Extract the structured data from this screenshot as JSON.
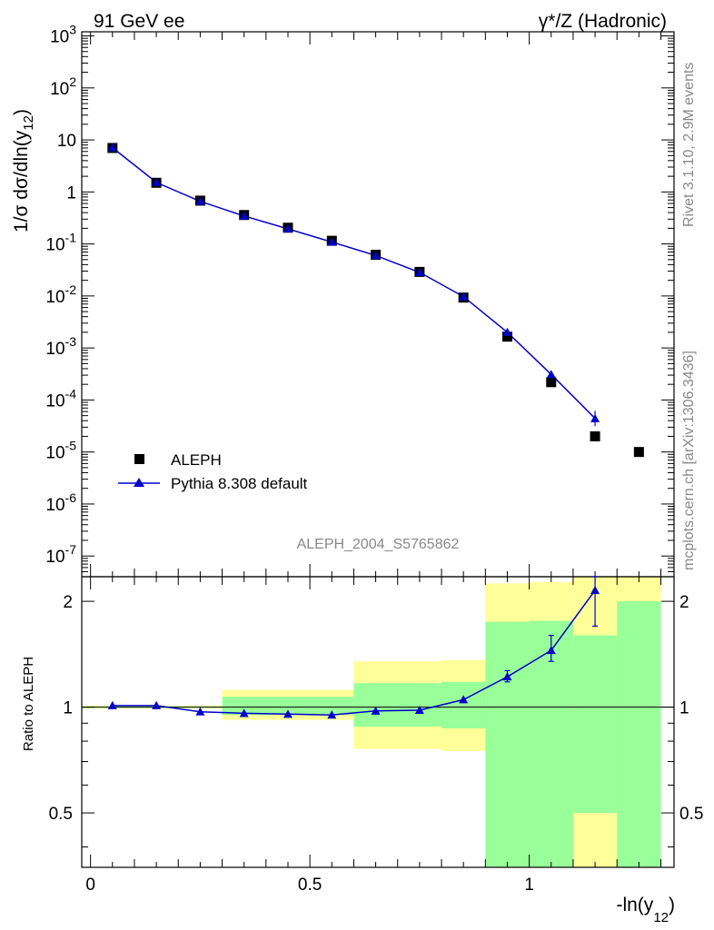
{
  "header": {
    "left_title": "91 GeV ee",
    "right_title": "γ*/Z (Hadronic)"
  },
  "side_labels": {
    "rivet": "Rivet 3.1.10,  2.9M events",
    "mcplots": "mcplots.cern.ch [arXiv:1306.3436]"
  },
  "watermark": "ALEPH_2004_S5765862",
  "legend": {
    "data_label": "ALEPH",
    "mc_label": "Pythia 8.308 default"
  },
  "colors": {
    "data": "#000000",
    "mc": "#0000cc",
    "band_outer": "#ffff99",
    "band_inner": "#99ff99",
    "side_text": "#888888"
  },
  "chart_data": [
    {
      "type": "scatter",
      "panel": "main",
      "ylabel": "1/σ  dσ/dln(y12)",
      "xlabel": "-ln(y12)",
      "yscale": "log",
      "xlim": [
        -0.02,
        1.33
      ],
      "ylim": [
        4e-08,
        1200
      ],
      "y_tick_labels": [
        "10^-7",
        "10^-6",
        "10^-5",
        "10^-4",
        "10^-3",
        "10^-2",
        "10^-1",
        "1",
        "10",
        "10^2",
        "10^3"
      ],
      "series": [
        {
          "name": "ALEPH",
          "marker": "square",
          "x": [
            0.05,
            0.15,
            0.25,
            0.35,
            0.45,
            0.55,
            0.65,
            0.75,
            0.85,
            0.95,
            1.05,
            1.15,
            1.25
          ],
          "y": [
            7.0,
            1.5,
            0.68,
            0.36,
            0.205,
            0.115,
            0.062,
            0.029,
            0.0093,
            0.00165,
            0.00022,
            2e-05,
            1e-05
          ]
        },
        {
          "name": "Pythia 8.308 default",
          "marker": "triangle",
          "x": [
            0.05,
            0.15,
            0.25,
            0.35,
            0.45,
            0.55,
            0.65,
            0.75,
            0.85,
            0.95,
            1.05,
            1.15
          ],
          "y": [
            7.1,
            1.52,
            0.66,
            0.345,
            0.195,
            0.109,
            0.06,
            0.0284,
            0.0097,
            0.002,
            0.00031,
            4.4e-05
          ]
        }
      ]
    },
    {
      "type": "line",
      "panel": "ratio",
      "ylabel": "Ratio to ALEPH",
      "xlabel": "-ln(y12)",
      "yscale": "log",
      "xlim": [
        -0.02,
        1.33
      ],
      "ylim": [
        0.35,
        2.35
      ],
      "x_tick_labels": [
        "0",
        "0.5",
        "1"
      ],
      "y_tick_labels": [
        "0.5",
        "1",
        "2"
      ],
      "bands": [
        {
          "x0": -0.02,
          "x1": 0.3,
          "outer": [
            0.99,
            1.01
          ],
          "inner": [
            0.995,
            1.005
          ]
        },
        {
          "x0": 0.3,
          "x1": 0.6,
          "outer": [
            0.92,
            1.12
          ],
          "inner": [
            0.95,
            1.07
          ]
        },
        {
          "x0": 0.6,
          "x1": 0.8,
          "outer": [
            0.76,
            1.35
          ],
          "inner": [
            0.88,
            1.17
          ]
        },
        {
          "x0": 0.8,
          "x1": 0.9,
          "outer": [
            0.75,
            1.36
          ],
          "inner": [
            0.87,
            1.18
          ]
        },
        {
          "x0": 0.9,
          "x1": 1.0,
          "outer": [
            0.35,
            2.25
          ],
          "inner": [
            0.35,
            1.75
          ]
        },
        {
          "x0": 1.0,
          "x1": 1.1,
          "outer": [
            0.35,
            2.27
          ],
          "inner": [
            0.35,
            1.76
          ]
        },
        {
          "x0": 1.1,
          "x1": 1.2,
          "outer": [
            0.35,
            2.35
          ],
          "inner": [
            0.5,
            1.6
          ],
          "outer_gaps": [
            [
              0.5,
              1.6
            ]
          ]
        },
        {
          "x0": 1.2,
          "x1": 1.3,
          "outer": [
            0.35,
            2.35
          ],
          "inner": [
            0.35,
            2.0
          ]
        }
      ],
      "series": [
        {
          "name": "Pythia 8.308 default",
          "x": [
            0.05,
            0.15,
            0.25,
            0.35,
            0.45,
            0.55,
            0.65,
            0.75,
            0.85,
            0.95,
            1.05,
            1.15
          ],
          "y": [
            1.01,
            1.01,
            0.97,
            0.96,
            0.955,
            0.95,
            0.975,
            0.98,
            1.05,
            1.22,
            1.45,
            2.15
          ],
          "err_low": [
            0,
            0,
            0,
            0,
            0,
            0,
            0,
            0,
            0,
            0.04,
            0.1,
            0.45
          ],
          "err_high": [
            0,
            0,
            0,
            0,
            0,
            0,
            0,
            0,
            0,
            0.05,
            0.15,
            0.2
          ]
        }
      ]
    }
  ]
}
